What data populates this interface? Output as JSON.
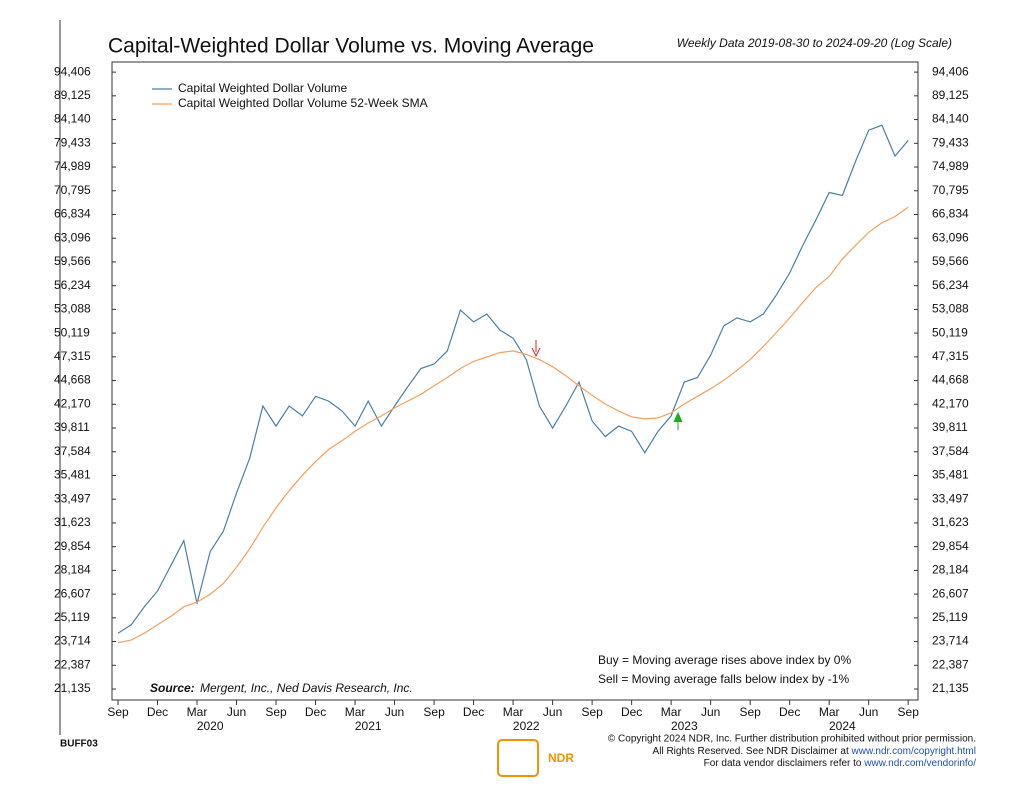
{
  "chart_data": {
    "type": "line",
    "title": "Capital-Weighted Dollar Volume vs. Moving Average",
    "subtitle": "Weekly Data 2019-08-30 to 2024-09-20 (Log Scale)",
    "log_scale": true,
    "x": [
      "2019-09",
      "2019-10",
      "2019-11",
      "2019-12",
      "2020-01",
      "2020-02",
      "2020-03",
      "2020-04",
      "2020-05",
      "2020-06",
      "2020-07",
      "2020-08",
      "2020-09",
      "2020-10",
      "2020-11",
      "2020-12",
      "2021-01",
      "2021-02",
      "2021-03",
      "2021-04",
      "2021-05",
      "2021-06",
      "2021-07",
      "2021-08",
      "2021-09",
      "2021-10",
      "2021-11",
      "2021-12",
      "2022-01",
      "2022-02",
      "2022-03",
      "2022-04",
      "2022-05",
      "2022-06",
      "2022-07",
      "2022-08",
      "2022-09",
      "2022-10",
      "2022-11",
      "2022-12",
      "2023-01",
      "2023-02",
      "2023-03",
      "2023-04",
      "2023-05",
      "2023-06",
      "2023-07",
      "2023-08",
      "2023-09",
      "2023-10",
      "2023-11",
      "2023-12",
      "2024-01",
      "2024-02",
      "2024-03",
      "2024-04",
      "2024-05",
      "2024-06",
      "2024-07",
      "2024-08",
      "2024-09"
    ],
    "series": [
      {
        "name": "Capital Weighted Dollar Volume",
        "color": "#4a7fa6",
        "values": [
          24200,
          24700,
          25800,
          26800,
          28500,
          30300,
          26000,
          29500,
          31000,
          34000,
          37000,
          42000,
          40000,
          42000,
          41000,
          43000,
          42500,
          41500,
          40000,
          42500,
          40000,
          42000,
          44000,
          46000,
          46500,
          48000,
          53000,
          51500,
          52500,
          50500,
          49500,
          47000,
          42000,
          39800,
          42000,
          44500,
          40500,
          39000,
          40000,
          39500,
          37500,
          39500,
          41000,
          44500,
          45000,
          47500,
          51000,
          52000,
          51500,
          52500,
          55000,
          58000,
          62000,
          66000,
          70500,
          70000,
          76000,
          82000,
          83000,
          77000,
          80000
        ]
      },
      {
        "name": "Capital Weighted Dollar Volume 52-Week SMA",
        "color": "#f5a05a",
        "values": [
          23650,
          23800,
          24200,
          24700,
          25200,
          25800,
          26100,
          26600,
          27300,
          28400,
          29700,
          31300,
          32800,
          34200,
          35500,
          36700,
          37800,
          38600,
          39500,
          40300,
          41000,
          41800,
          42500,
          43200,
          44100,
          45000,
          46000,
          46800,
          47300,
          47800,
          48000,
          47600,
          47000,
          46200,
          45200,
          44100,
          43100,
          42200,
          41500,
          40900,
          40700,
          40800,
          41300,
          42200,
          43000,
          43800,
          44700,
          45800,
          47000,
          48500,
          50200,
          52000,
          54000,
          56000,
          57500,
          60000,
          62000,
          64000,
          65500,
          66500,
          68000
        ]
      }
    ],
    "ylim": [
      20580,
      96750
    ],
    "yticks": [
      {
        "value": 21135,
        "label": "21,135"
      },
      {
        "value": 22387,
        "label": "22,387"
      },
      {
        "value": 23714,
        "label": "23,714"
      },
      {
        "value": 25119,
        "label": "25,119"
      },
      {
        "value": 26607,
        "label": "26,607"
      },
      {
        "value": 28184,
        "label": "28,184"
      },
      {
        "value": 29854,
        "label": "29,854"
      },
      {
        "value": 31623,
        "label": "31,623"
      },
      {
        "value": 33497,
        "label": "33,497"
      },
      {
        "value": 35481,
        "label": "35,481"
      },
      {
        "value": 37584,
        "label": "37,584"
      },
      {
        "value": 39811,
        "label": "39,811"
      },
      {
        "value": 42170,
        "label": "42,170"
      },
      {
        "value": 44668,
        "label": "44,668"
      },
      {
        "value": 47315,
        "label": "47,315"
      },
      {
        "value": 50119,
        "label": "50,119"
      },
      {
        "value": 53088,
        "label": "53,088"
      },
      {
        "value": 56234,
        "label": "56,234"
      },
      {
        "value": 59566,
        "label": "59,566"
      },
      {
        "value": 63096,
        "label": "63,096"
      },
      {
        "value": 66834,
        "label": "66,834"
      },
      {
        "value": 70795,
        "label": "70,795"
      },
      {
        "value": 74989,
        "label": "74,989"
      },
      {
        "value": 79433,
        "label": "79,433"
      },
      {
        "value": 84140,
        "label": "84,140"
      },
      {
        "value": 89125,
        "label": "89,125"
      },
      {
        "value": 94406,
        "label": "94,406"
      }
    ],
    "xticks": [
      {
        "value": "2019-09",
        "label": "Sep"
      },
      {
        "value": "2019-12",
        "label": "Dec"
      },
      {
        "value": "2020-03",
        "label": "Mar"
      },
      {
        "value": "2020-06",
        "label": "Jun"
      },
      {
        "value": "2020-09",
        "label": "Sep"
      },
      {
        "value": "2020-12",
        "label": "Dec"
      },
      {
        "value": "2021-03",
        "label": "Mar"
      },
      {
        "value": "2021-06",
        "label": "Jun"
      },
      {
        "value": "2021-09",
        "label": "Sep"
      },
      {
        "value": "2021-12",
        "label": "Dec"
      },
      {
        "value": "2022-03",
        "label": "Mar"
      },
      {
        "value": "2022-06",
        "label": "Jun"
      },
      {
        "value": "2022-09",
        "label": "Sep"
      },
      {
        "value": "2022-12",
        "label": "Dec"
      },
      {
        "value": "2023-03",
        "label": "Mar"
      },
      {
        "value": "2023-06",
        "label": "Jun"
      },
      {
        "value": "2023-09",
        "label": "Sep"
      },
      {
        "value": "2023-12",
        "label": "Dec"
      },
      {
        "value": "2024-03",
        "label": "Mar"
      },
      {
        "value": "2024-06",
        "label": "Jun"
      },
      {
        "value": "2024-09",
        "label": "Sep"
      }
    ],
    "year_labels": [
      2020,
      2021,
      2022,
      2023,
      2024
    ],
    "legend": "upper left",
    "source_label": "Source:",
    "source": "Mergent, Inc., Ned Davis Research, Inc.",
    "annotations": [
      "Buy = Moving average rises above index by 0%",
      "Sell = Moving average falls below index by -1%"
    ]
  },
  "footer": {
    "code": "BUFF03",
    "logo": "NDR",
    "line1": "© Copyright 2024 NDR, Inc. Further distribution prohibited without prior permission.",
    "line2": "All Rights Reserved. See NDR Disclaimer at",
    "link2": "www.ndr.com/copyright.html",
    "line3": "For data vendor disclaimers refer to",
    "link3": "www.ndr.com/vendorinfo/"
  }
}
